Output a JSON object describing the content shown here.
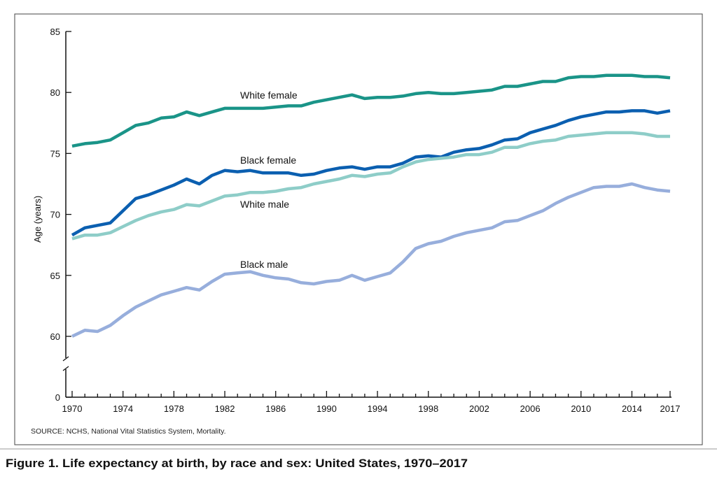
{
  "chart_data": {
    "type": "line",
    "title": "Figure 1. Life expectancy at birth, by race and sex: United States, 1970–2017",
    "source": "SOURCE: NCHS, National Vital Statistics System, Mortality.",
    "xlabel": "",
    "ylabel": "Age (years)",
    "ylim": [
      0,
      85
    ],
    "y_axis_break": [
      0,
      60
    ],
    "yticks": [
      "0",
      "60",
      "65",
      "70",
      "75",
      "80",
      "85"
    ],
    "xticks": [
      "1970",
      "1974",
      "1978",
      "1982",
      "1986",
      "1990",
      "1994",
      "1998",
      "2002",
      "2006",
      "2010",
      "2014",
      "2017"
    ],
    "grid": false,
    "legend": "inline labels",
    "x": [
      1970,
      1971,
      1972,
      1973,
      1974,
      1975,
      1976,
      1977,
      1978,
      1979,
      1980,
      1981,
      1982,
      1983,
      1984,
      1985,
      1986,
      1987,
      1988,
      1989,
      1990,
      1991,
      1992,
      1993,
      1994,
      1995,
      1996,
      1997,
      1998,
      1999,
      2000,
      2001,
      2002,
      2003,
      2004,
      2005,
      2006,
      2007,
      2008,
      2009,
      2010,
      2011,
      2012,
      2013,
      2014,
      2015,
      2016,
      2017
    ],
    "series": [
      {
        "name": "White female",
        "color": "#1a9488",
        "values": [
          75.6,
          75.8,
          75.9,
          76.1,
          76.7,
          77.3,
          77.5,
          77.9,
          78.0,
          78.4,
          78.1,
          78.4,
          78.7,
          78.7,
          78.7,
          78.7,
          78.8,
          78.9,
          78.9,
          79.2,
          79.4,
          79.6,
          79.8,
          79.5,
          79.6,
          79.6,
          79.7,
          79.9,
          80.0,
          79.9,
          79.9,
          80.0,
          80.1,
          80.2,
          80.5,
          80.5,
          80.7,
          80.9,
          80.9,
          81.2,
          81.3,
          81.3,
          81.4,
          81.4,
          81.4,
          81.3,
          81.3,
          81.2
        ]
      },
      {
        "name": "Black female",
        "color": "#0b5fb0",
        "values": [
          68.3,
          68.9,
          69.1,
          69.3,
          70.3,
          71.3,
          71.6,
          72.0,
          72.4,
          72.9,
          72.5,
          73.2,
          73.6,
          73.5,
          73.6,
          73.4,
          73.4,
          73.4,
          73.2,
          73.3,
          73.6,
          73.8,
          73.9,
          73.7,
          73.9,
          73.9,
          74.2,
          74.7,
          74.8,
          74.7,
          75.1,
          75.3,
          75.4,
          75.7,
          76.1,
          76.2,
          76.7,
          77.0,
          77.3,
          77.7,
          78.0,
          78.2,
          78.4,
          78.4,
          78.5,
          78.5,
          78.3,
          78.5
        ]
      },
      {
        "name": "White male",
        "color": "#8ecdc8",
        "values": [
          68.0,
          68.3,
          68.3,
          68.5,
          69.0,
          69.5,
          69.9,
          70.2,
          70.4,
          70.8,
          70.7,
          71.1,
          71.5,
          71.6,
          71.8,
          71.8,
          71.9,
          72.1,
          72.2,
          72.5,
          72.7,
          72.9,
          73.2,
          73.1,
          73.3,
          73.4,
          73.9,
          74.3,
          74.5,
          74.6,
          74.7,
          74.9,
          74.9,
          75.1,
          75.5,
          75.5,
          75.8,
          76.0,
          76.1,
          76.4,
          76.5,
          76.6,
          76.7,
          76.7,
          76.7,
          76.6,
          76.4,
          76.4
        ]
      },
      {
        "name": "Black male",
        "color": "#97aedc",
        "values": [
          60.0,
          60.5,
          60.4,
          60.9,
          61.7,
          62.4,
          62.9,
          63.4,
          63.7,
          64.0,
          63.8,
          64.5,
          65.1,
          65.2,
          65.3,
          65.0,
          64.8,
          64.7,
          64.4,
          64.3,
          64.5,
          64.6,
          65.0,
          64.6,
          64.9,
          65.2,
          66.1,
          67.2,
          67.6,
          67.8,
          68.2,
          68.5,
          68.7,
          68.9,
          69.4,
          69.5,
          69.9,
          70.3,
          70.9,
          71.4,
          71.8,
          72.2,
          72.3,
          72.3,
          72.5,
          72.2,
          72.0,
          71.9
        ]
      }
    ]
  }
}
